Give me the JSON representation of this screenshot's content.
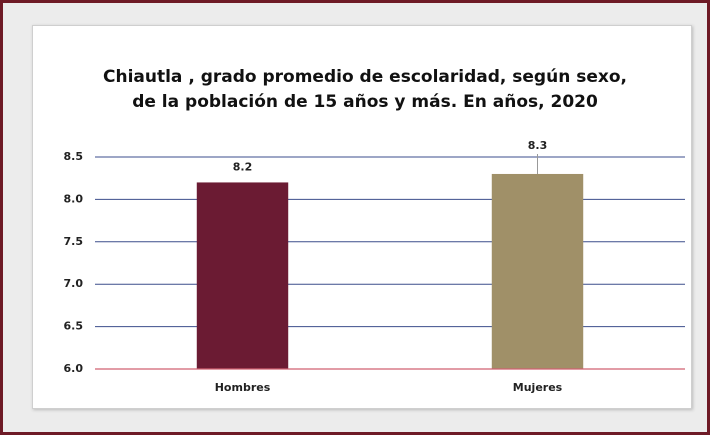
{
  "chart_data": {
    "type": "bar",
    "title": [
      "Chiautla , grado promedio de escolaridad, según sexo,",
      "de la población de 15 años y más. En años, 2020"
    ],
    "categories": [
      "Hombres",
      "Mujeres"
    ],
    "values": [
      8.2,
      8.3
    ],
    "colors": [
      "#6b1b33",
      "#a09068"
    ],
    "ylim": [
      6,
      8.5
    ],
    "yticks": [
      {
        "value": 6,
        "label": "6.0"
      },
      6.5,
      {
        "value": 7,
        "label": "7.0"
      },
      7.5,
      {
        "value": 8,
        "label": "8.0"
      },
      8.5
    ],
    "grid": true
  }
}
